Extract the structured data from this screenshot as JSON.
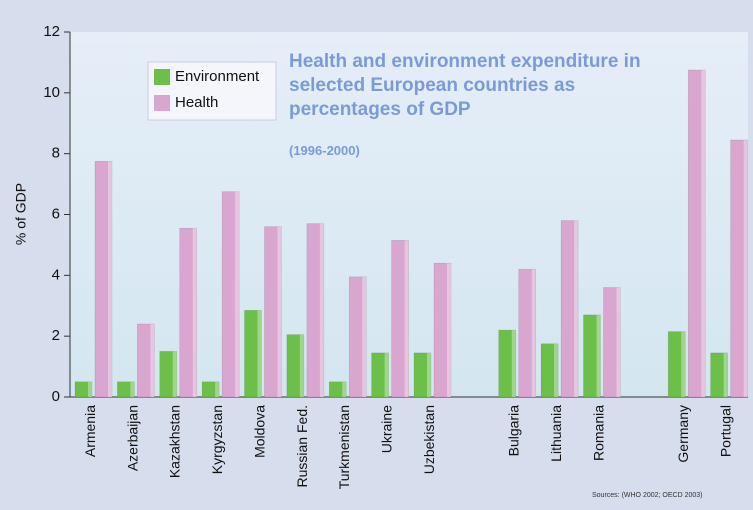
{
  "chart_data": {
    "type": "bar",
    "title": "Health and environment expenditure in selected European countries as percentages  of GDP",
    "subtitle": "(1996-2000)",
    "source": "Sources: (WHO 2002; OECD 2003)",
    "y_label": "% of GDP",
    "categories": [
      "Armenia",
      "Azerbaijan",
      "Kazakhstan",
      "Kyrgyzstan",
      "Moldova",
      "Russian Fed.",
      "Turkmenistan",
      "Ukraine",
      "Uzbekistan",
      null,
      "Bulgaria",
      "Lithuania",
      "Romania",
      null,
      "Germany",
      "Portugal"
    ],
    "series": [
      {
        "name": "Environment",
        "color": "#6cc04a",
        "values": [
          0.5,
          0.5,
          1.5,
          0.5,
          2.85,
          2.05,
          0.5,
          1.45,
          1.45,
          null,
          2.2,
          1.75,
          2.7,
          null,
          2.15,
          1.45
        ]
      },
      {
        "name": "Health",
        "color": "#d9a6cf",
        "values": [
          7.75,
          2.4,
          5.55,
          6.75,
          5.6,
          5.7,
          3.95,
          5.15,
          4.4,
          null,
          4.2,
          5.8,
          3.6,
          null,
          10.75,
          8.45
        ]
      }
    ],
    "ylim": [
      0,
      12
    ],
    "yticks": [
      0,
      2,
      4,
      6,
      8,
      10,
      12
    ],
    "legend": "upper-left"
  }
}
